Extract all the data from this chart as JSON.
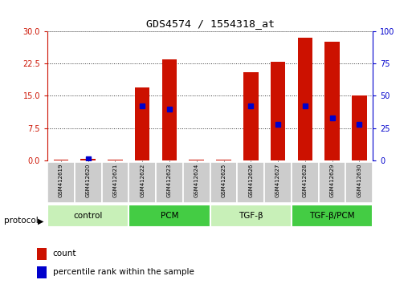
{
  "title": "GDS4574 / 1554318_at",
  "samples": [
    "GSM412619",
    "GSM412620",
    "GSM412621",
    "GSM412622",
    "GSM412623",
    "GSM412624",
    "GSM412625",
    "GSM412626",
    "GSM412627",
    "GSM412628",
    "GSM412629",
    "GSM412630"
  ],
  "count_values": [
    0.15,
    0.3,
    0.15,
    17.0,
    23.5,
    0.15,
    0.15,
    20.5,
    23.0,
    28.5,
    27.5,
    15.0
  ],
  "percentile_values": [
    null,
    1.5,
    null,
    42.0,
    40.0,
    null,
    null,
    42.0,
    28.0,
    42.0,
    33.0,
    28.0
  ],
  "ylim_left": [
    0,
    30
  ],
  "ylim_right": [
    0,
    100
  ],
  "yticks_left": [
    0,
    7.5,
    15,
    22.5,
    30
  ],
  "yticks_right": [
    0,
    25,
    50,
    75,
    100
  ],
  "groups": [
    {
      "label": "control",
      "start": 0,
      "end": 3,
      "color": "#c8f0b8"
    },
    {
      "label": "PCM",
      "start": 3,
      "end": 6,
      "color": "#44cc44"
    },
    {
      "label": "TGF-β",
      "start": 6,
      "end": 9,
      "color": "#c8f0b8"
    },
    {
      "label": "TGF-β/PCM",
      "start": 9,
      "end": 12,
      "color": "#44cc44"
    }
  ],
  "bar_color": "#cc1100",
  "percentile_color": "#0000cc",
  "bar_width": 0.55,
  "protocol_label": "protocol",
  "legend_count_label": "count",
  "legend_percentile_label": "percentile rank within the sample",
  "left_axis_color": "#cc1100",
  "right_axis_color": "#0000cc",
  "grid_color": "#000000",
  "sample_box_color": "#cccccc",
  "sample_box_edge": "#888888"
}
